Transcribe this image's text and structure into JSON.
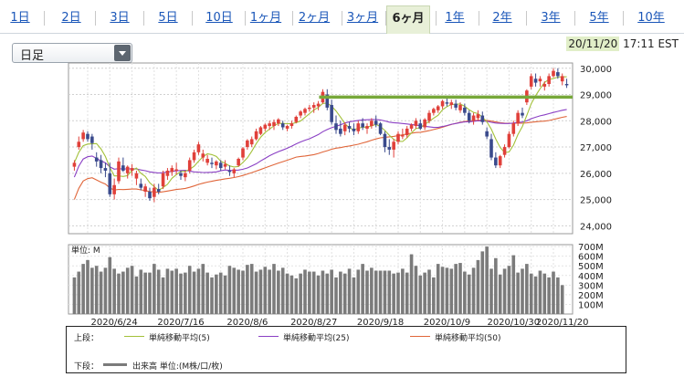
{
  "tabs": [
    {
      "label": "1日",
      "active": false
    },
    {
      "label": "2日",
      "active": false
    },
    {
      "label": "3日",
      "active": false
    },
    {
      "label": "5日",
      "active": false
    },
    {
      "label": "10日",
      "active": false
    },
    {
      "label": "1ヶ月",
      "active": false
    },
    {
      "label": "2ヶ月",
      "active": false
    },
    {
      "label": "3ヶ月",
      "active": false
    },
    {
      "label": "6ヶ月",
      "active": true
    },
    {
      "label": "1年",
      "active": false
    },
    {
      "label": "2年",
      "active": false
    },
    {
      "label": "3年",
      "active": false
    },
    {
      "label": "5年",
      "active": false
    },
    {
      "label": "10年",
      "active": false
    }
  ],
  "chart_type_select": {
    "value": "日足"
  },
  "timestamp": {
    "date": "20/11/20",
    "time": "17:11 EST"
  },
  "chart_data": [
    {
      "type": "candlestick",
      "y_ticks": [
        "30,000",
        "29,000",
        "28,000",
        "27,000",
        "26,000",
        "25,000",
        "24,000"
      ],
      "ylim": [
        23700,
        30200
      ],
      "x_ticks": [
        "2020/6/24",
        "2020/7/16",
        "2020/8/6",
        "2020/8/27",
        "2020/9/18",
        "2020/10/9",
        "2020/10/30",
        "2020/11/20"
      ],
      "colors": {
        "up": "#e0403a",
        "down": "#3a4a8c",
        "ma5": "#a3c13a",
        "ma25": "#8a3fc4",
        "ma50": "#e0663a",
        "horizontal_line": "#77a83a"
      },
      "horizontal_line": 28900,
      "ohlc": [
        [
          26250,
          26500,
          26100,
          26400
        ],
        [
          27000,
          27400,
          26900,
          27200
        ],
        [
          27300,
          27650,
          27200,
          27550
        ],
        [
          27500,
          27600,
          27200,
          27300
        ],
        [
          27400,
          27500,
          26900,
          27150
        ],
        [
          26600,
          26800,
          26250,
          26450
        ],
        [
          26500,
          26700,
          26000,
          26200
        ],
        [
          26200,
          26400,
          25850,
          26100
        ],
        [
          26000,
          26400,
          25100,
          25200
        ],
        [
          25200,
          25800,
          25000,
          25550
        ],
        [
          25700,
          26600,
          25600,
          26450
        ],
        [
          26300,
          26600,
          26050,
          26100
        ],
        [
          26000,
          26300,
          25800,
          26250
        ],
        [
          26100,
          26350,
          25900,
          26200
        ],
        [
          25800,
          26100,
          25550,
          26000
        ],
        [
          25600,
          25800,
          25350,
          25450
        ],
        [
          25300,
          25600,
          25100,
          25500
        ],
        [
          25300,
          25450,
          24950,
          25050
        ],
        [
          25100,
          25600,
          24900,
          25450
        ],
        [
          25400,
          25600,
          25200,
          25300
        ],
        [
          25500,
          26100,
          25400,
          26000
        ],
        [
          25900,
          26200,
          25750,
          26100
        ],
        [
          26050,
          26300,
          25900,
          26200
        ],
        [
          26100,
          26400,
          25950,
          26150
        ],
        [
          26000,
          26100,
          25750,
          25900
        ],
        [
          25850,
          26100,
          25700,
          26000
        ],
        [
          26100,
          26600,
          26000,
          26500
        ],
        [
          26500,
          26900,
          26400,
          26800
        ],
        [
          26800,
          27200,
          26700,
          27100
        ],
        [
          26600,
          26900,
          26450,
          26750
        ],
        [
          26400,
          26700,
          26300,
          26550
        ],
        [
          26400,
          26600,
          26200,
          26350
        ],
        [
          26300,
          26500,
          26150,
          26450
        ],
        [
          26400,
          26500,
          26100,
          26200
        ],
        [
          26250,
          26500,
          26150,
          26350
        ],
        [
          26100,
          26300,
          25900,
          26050
        ],
        [
          26000,
          26200,
          25850,
          26150
        ],
        [
          26300,
          26600,
          26250,
          26550
        ],
        [
          26600,
          27000,
          26500,
          26950
        ],
        [
          27000,
          27300,
          26900,
          27250
        ],
        [
          27100,
          27400,
          27000,
          27300
        ],
        [
          27300,
          27700,
          27250,
          27600
        ],
        [
          27500,
          27800,
          27450,
          27750
        ],
        [
          27700,
          27900,
          27600,
          27850
        ],
        [
          27800,
          28000,
          27650,
          27900
        ],
        [
          27800,
          28050,
          27650,
          27950
        ],
        [
          27900,
          28100,
          27800,
          28050
        ],
        [
          27900,
          28000,
          27650,
          27750
        ],
        [
          27700,
          27850,
          27600,
          27800
        ],
        [
          27800,
          28000,
          27700,
          27900
        ],
        [
          27950,
          28200,
          27900,
          28150
        ],
        [
          28200,
          28400,
          28100,
          28350
        ],
        [
          28300,
          28500,
          28200,
          28450
        ],
        [
          28450,
          28600,
          28350,
          28500
        ],
        [
          28500,
          28700,
          28300,
          28600
        ],
        [
          28550,
          28750,
          28400,
          28650
        ],
        [
          28700,
          29200,
          28650,
          29100
        ],
        [
          29000,
          29200,
          28400,
          28500
        ],
        [
          28600,
          28800,
          27850,
          27950
        ],
        [
          27900,
          28200,
          27500,
          27650
        ],
        [
          27700,
          28000,
          27400,
          27500
        ],
        [
          27600,
          27950,
          27450,
          27850
        ],
        [
          27800,
          27950,
          27550,
          27700
        ],
        [
          27700,
          27900,
          27450,
          27600
        ],
        [
          27600,
          28000,
          27500,
          27900
        ],
        [
          27900,
          28100,
          27650,
          27750
        ],
        [
          27700,
          27900,
          27500,
          27800
        ],
        [
          27800,
          28100,
          27700,
          28000
        ],
        [
          28000,
          28200,
          27750,
          27850
        ],
        [
          27900,
          27950,
          27450,
          27500
        ],
        [
          27500,
          27600,
          26800,
          27000
        ],
        [
          27000,
          27300,
          26700,
          26900
        ],
        [
          26900,
          27300,
          26600,
          27200
        ],
        [
          27200,
          27600,
          27100,
          27500
        ],
        [
          27400,
          27700,
          27300,
          27450
        ],
        [
          27450,
          27800,
          27350,
          27700
        ],
        [
          27700,
          27900,
          27600,
          27850
        ],
        [
          27800,
          28100,
          27700,
          28000
        ],
        [
          27900,
          28050,
          27650,
          27700
        ],
        [
          27750,
          28100,
          27650,
          28050
        ],
        [
          28000,
          28400,
          27900,
          28300
        ],
        [
          28300,
          28500,
          28200,
          28450
        ],
        [
          28400,
          28600,
          28300,
          28550
        ],
        [
          28550,
          28800,
          28450,
          28750
        ],
        [
          28700,
          28900,
          28550,
          28650
        ],
        [
          28600,
          28800,
          28450,
          28700
        ],
        [
          28650,
          28800,
          28400,
          28500
        ],
        [
          28400,
          28700,
          28300,
          28600
        ],
        [
          28500,
          28650,
          28200,
          28300
        ],
        [
          28300,
          28400,
          27900,
          28000
        ],
        [
          28000,
          28300,
          27850,
          28200
        ],
        [
          28100,
          28400,
          28000,
          28250
        ],
        [
          28200,
          28350,
          27850,
          27950
        ],
        [
          27600,
          27750,
          27300,
          27400
        ],
        [
          27300,
          27500,
          26500,
          26600
        ],
        [
          26600,
          26800,
          26200,
          26300
        ],
        [
          26300,
          26700,
          26200,
          26650
        ],
        [
          26700,
          27100,
          26600,
          27000
        ],
        [
          27000,
          27600,
          26950,
          27500
        ],
        [
          27500,
          28000,
          27400,
          27900
        ],
        [
          27900,
          28400,
          27800,
          28300
        ],
        [
          28300,
          28500,
          28100,
          28200
        ],
        [
          28700,
          29200,
          28600,
          29150
        ],
        [
          29300,
          29800,
          29200,
          29700
        ],
        [
          29600,
          29800,
          29300,
          29450
        ],
        [
          29500,
          29700,
          29300,
          29600
        ],
        [
          29300,
          29500,
          29150,
          29400
        ],
        [
          29400,
          29800,
          29300,
          29700
        ],
        [
          29700,
          30000,
          29650,
          29900
        ],
        [
          29850,
          30000,
          29600,
          29700
        ],
        [
          29500,
          29800,
          29350,
          29700
        ],
        [
          29400,
          29600,
          29250,
          29350
        ]
      ]
    },
    {
      "type": "bar",
      "unit_label": "単位: M",
      "y_ticks": [
        "700M",
        "600M",
        "500M",
        "400M",
        "300M",
        "200M",
        "100M"
      ],
      "ylim": [
        0,
        720
      ],
      "color": "#7b7b7b",
      "volumes": [
        380,
        440,
        520,
        560,
        480,
        500,
        440,
        480,
        590,
        470,
        420,
        440,
        480,
        500,
        390,
        460,
        430,
        430,
        520,
        460,
        380,
        470,
        450,
        470,
        420,
        430,
        500,
        440,
        470,
        520,
        430,
        380,
        410,
        430,
        400,
        500,
        480,
        460,
        450,
        510,
        520,
        440,
        460,
        490,
        460,
        520,
        450,
        480,
        420,
        400,
        370,
        420,
        460,
        440,
        440,
        400,
        450,
        420,
        460,
        380,
        440,
        420,
        470,
        380,
        460,
        520,
        450,
        480,
        450,
        450,
        450,
        450,
        420,
        430,
        470,
        430,
        620,
        500,
        400,
        430,
        460,
        380,
        520,
        490,
        480,
        470,
        520,
        530,
        440,
        410,
        480,
        560,
        650,
        700,
        470,
        580,
        410,
        470,
        500,
        610,
        430,
        470,
        520,
        420,
        390,
        450,
        420,
        380,
        440,
        380,
        300
      ]
    }
  ],
  "legend": {
    "top_label": "上段：",
    "bottom_label": "下段：",
    "ma5": "単純移動平均(5)",
    "ma25": "単純移動平均(25)",
    "ma50": "単純移動平均(50)",
    "volume": "出来高 単位:(M株/口/枚)"
  }
}
